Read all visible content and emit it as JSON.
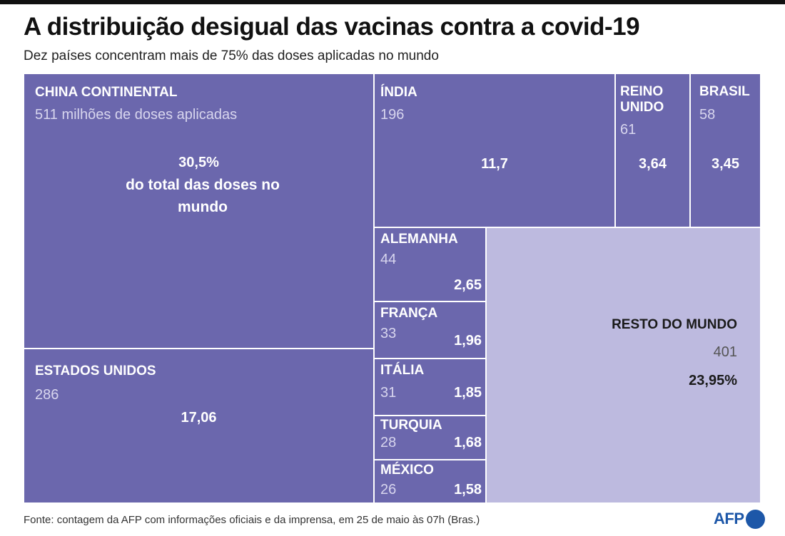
{
  "header": {
    "title": "A distribuição desigual das vacinas contra a covid-19",
    "subtitle": "Dez países concentram mais de 75% das doses aplicadas no mundo"
  },
  "chart_data": {
    "type": "treemap",
    "value_label": "milhões de doses aplicadas",
    "percent_label": "do total das doses no mundo",
    "items": [
      {
        "name": "CHINA CONTINENTAL",
        "doses": 511,
        "doses_text": "511 milhões de doses aplicadas",
        "percent": 30.5,
        "percent_text": "30,5%",
        "note": "do total das doses no mundo"
      },
      {
        "name": "ESTADOS UNIDOS",
        "doses": 286,
        "doses_text": "286",
        "percent": 17.06,
        "percent_text": "17,06"
      },
      {
        "name": "ÍNDIA",
        "doses": 196,
        "doses_text": "196",
        "percent": 11.7,
        "percent_text": "11,7"
      },
      {
        "name": "REINO UNIDO",
        "doses": 61,
        "doses_text": "61",
        "percent": 3.64,
        "percent_text": "3,64"
      },
      {
        "name": "BRASIL",
        "doses": 58,
        "doses_text": "58",
        "percent": 3.45,
        "percent_text": "3,45"
      },
      {
        "name": "ALEMANHA",
        "doses": 44,
        "doses_text": "44",
        "percent": 2.65,
        "percent_text": "2,65"
      },
      {
        "name": "FRANÇA",
        "doses": 33,
        "doses_text": "33",
        "percent": 1.96,
        "percent_text": "1,96"
      },
      {
        "name": "ITÁLIA",
        "doses": 31,
        "doses_text": "31",
        "percent": 1.85,
        "percent_text": "1,85"
      },
      {
        "name": "TURQUIA",
        "doses": 28,
        "doses_text": "28",
        "percent": 1.68,
        "percent_text": "1,68"
      },
      {
        "name": "MÉXICO",
        "doses": 26,
        "doses_text": "26",
        "percent": 1.58,
        "percent_text": "1,58"
      },
      {
        "name": "RESTO DO MUNDO",
        "doses": 401,
        "doses_text": "401",
        "percent": 23.95,
        "percent_text": "23,95%"
      }
    ],
    "colors": {
      "countries": "#6b67ad",
      "rest_of_world": "#bdbadf"
    }
  },
  "footer": {
    "source": "Fonte: contagem da AFP com informações oficiais e da imprensa, em 25 de maio às 07h (Bras.)",
    "logo": "AFP"
  }
}
